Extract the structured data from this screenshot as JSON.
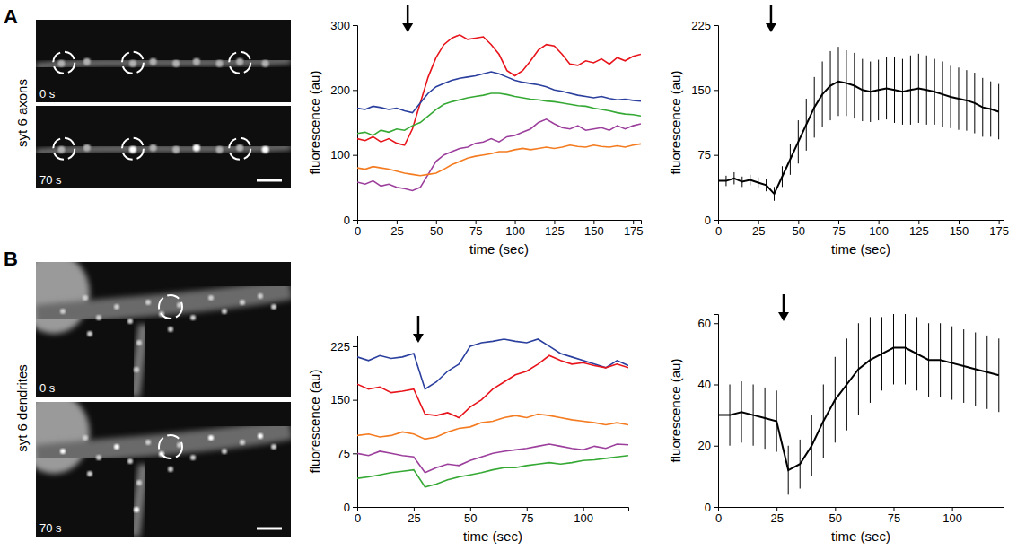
{
  "panels": [
    {
      "letter": "A",
      "label": "syt 6  axons",
      "image_times": [
        "0 s",
        "70 s"
      ]
    },
    {
      "letter": "B",
      "label": "syt 6  dendrites",
      "image_times": [
        "0 s",
        "70 s"
      ]
    }
  ],
  "chart_data": [
    {
      "type": "line",
      "x_label": "time (sec)",
      "y_label": "fluorescence (au)",
      "xlim": [
        0,
        180
      ],
      "xticks": [
        0,
        25,
        50,
        75,
        100,
        125,
        150,
        175
      ],
      "ylim": [
        0,
        300
      ],
      "yticks": [
        0,
        100,
        200,
        300
      ],
      "arrow": 32,
      "x": [
        0,
        5,
        10,
        15,
        20,
        25,
        30,
        35,
        40,
        45,
        50,
        55,
        60,
        65,
        70,
        75,
        80,
        85,
        90,
        95,
        100,
        105,
        110,
        115,
        120,
        125,
        130,
        135,
        140,
        145,
        150,
        155,
        160,
        165,
        170,
        175,
        180
      ],
      "series": [
        {
          "color": "#e8141b",
          "values": [
            125,
            122,
            128,
            120,
            125,
            118,
            115,
            140,
            180,
            220,
            250,
            270,
            280,
            285,
            278,
            280,
            282,
            270,
            255,
            230,
            222,
            230,
            245,
            262,
            270,
            268,
            255,
            240,
            238,
            245,
            242,
            248,
            240,
            250,
            245,
            252,
            255
          ]
        },
        {
          "color": "#2b3f9e",
          "values": [
            172,
            170,
            175,
            173,
            170,
            172,
            168,
            165,
            180,
            195,
            205,
            210,
            215,
            218,
            220,
            222,
            225,
            228,
            225,
            220,
            215,
            212,
            210,
            208,
            205,
            200,
            198,
            195,
            192,
            190,
            188,
            190,
            187,
            185,
            186,
            184,
            183
          ]
        },
        {
          "color": "#36a935",
          "values": [
            133,
            135,
            130,
            138,
            135,
            140,
            138,
            145,
            150,
            160,
            170,
            178,
            182,
            185,
            188,
            190,
            192,
            195,
            195,
            193,
            190,
            188,
            186,
            185,
            183,
            182,
            180,
            178,
            176,
            175,
            172,
            170,
            168,
            165,
            163,
            162,
            160
          ]
        },
        {
          "color": "#9c3f9c",
          "values": [
            58,
            55,
            60,
            52,
            55,
            50,
            48,
            45,
            50,
            70,
            90,
            100,
            105,
            110,
            112,
            118,
            120,
            125,
            120,
            128,
            130,
            135,
            140,
            150,
            155,
            148,
            142,
            140,
            145,
            138,
            140,
            142,
            138,
            145,
            140,
            145,
            148
          ]
        },
        {
          "color": "#f47b20",
          "values": [
            80,
            78,
            82,
            80,
            78,
            75,
            72,
            70,
            68,
            70,
            72,
            78,
            85,
            90,
            95,
            98,
            100,
            102,
            105,
            105,
            108,
            110,
            108,
            110,
            112,
            110,
            112,
            115,
            113,
            112,
            115,
            113,
            112,
            114,
            112,
            115,
            117
          ]
        }
      ]
    },
    {
      "type": "line",
      "x_label": "time (sec)",
      "y_label": "fluorescence (au)",
      "xlim": [
        0,
        178
      ],
      "xticks": [
        0,
        25,
        50,
        75,
        100,
        125,
        150,
        175
      ],
      "ylim": [
        0,
        225
      ],
      "yticks": [
        0,
        75,
        150,
        225
      ],
      "arrow": 33,
      "color": "#000000",
      "x": [
        0,
        5,
        10,
        15,
        20,
        25,
        30,
        35,
        40,
        45,
        50,
        55,
        60,
        65,
        70,
        75,
        80,
        85,
        90,
        95,
        100,
        105,
        110,
        115,
        120,
        125,
        130,
        135,
        140,
        145,
        150,
        155,
        160,
        165,
        170,
        175
      ],
      "values": [
        45,
        45,
        48,
        44,
        46,
        43,
        40,
        30,
        50,
        70,
        90,
        110,
        130,
        145,
        155,
        160,
        158,
        155,
        150,
        148,
        150,
        152,
        150,
        148,
        150,
        152,
        150,
        148,
        145,
        142,
        140,
        138,
        135,
        130,
        128,
        125
      ],
      "errors": [
        6,
        6,
        7,
        6,
        6,
        6,
        7,
        8,
        12,
        18,
        25,
        30,
        35,
        38,
        40,
        40,
        38,
        38,
        36,
        35,
        35,
        36,
        38,
        38,
        40,
        40,
        40,
        38,
        38,
        36,
        36,
        35,
        35,
        34,
        32,
        32
      ]
    },
    {
      "type": "line",
      "x_label": "time (sec)",
      "y_label": "fluorescence (au)",
      "xlim": [
        0,
        120
      ],
      "xticks": [
        0,
        25,
        50,
        75,
        100
      ],
      "ylim": [
        0,
        240
      ],
      "yticks": [
        0,
        75,
        150,
        225
      ],
      "arrow": 27,
      "x": [
        0,
        5,
        10,
        15,
        20,
        25,
        30,
        35,
        40,
        45,
        50,
        55,
        60,
        65,
        70,
        75,
        80,
        85,
        90,
        95,
        100,
        105,
        110,
        115,
        120
      ],
      "series": [
        {
          "color": "#2b3f9e",
          "values": [
            210,
            205,
            212,
            208,
            210,
            215,
            165,
            175,
            190,
            200,
            225,
            230,
            232,
            235,
            232,
            230,
            235,
            225,
            215,
            210,
            205,
            200,
            195,
            205,
            198
          ]
        },
        {
          "color": "#e8141b",
          "values": [
            172,
            165,
            168,
            160,
            162,
            165,
            130,
            128,
            132,
            125,
            140,
            150,
            165,
            175,
            185,
            190,
            200,
            212,
            205,
            200,
            202,
            198,
            195,
            200,
            195
          ]
        },
        {
          "color": "#f47b20",
          "values": [
            100,
            102,
            98,
            100,
            105,
            102,
            95,
            98,
            105,
            110,
            112,
            118,
            120,
            125,
            128,
            125,
            130,
            128,
            125,
            122,
            120,
            118,
            115,
            118,
            115
          ]
        },
        {
          "color": "#9c3f9c",
          "values": [
            75,
            72,
            78,
            75,
            72,
            70,
            48,
            55,
            60,
            58,
            65,
            70,
            75,
            78,
            80,
            82,
            85,
            88,
            85,
            82,
            80,
            85,
            82,
            88,
            87
          ]
        },
        {
          "color": "#36a935",
          "values": [
            40,
            42,
            45,
            48,
            50,
            52,
            28,
            32,
            38,
            42,
            45,
            48,
            52,
            55,
            55,
            58,
            60,
            62,
            60,
            62,
            65,
            66,
            68,
            70,
            72
          ]
        }
      ]
    },
    {
      "type": "line",
      "x_label": "time (sec)",
      "y_label": "fluorescence (au)",
      "xlim": [
        0,
        122
      ],
      "xticks": [
        0,
        25,
        50,
        75,
        100
      ],
      "ylim": [
        0,
        63
      ],
      "yticks": [
        0,
        20,
        40,
        60
      ],
      "arrow": 28,
      "color": "#000000",
      "x": [
        0,
        5,
        10,
        15,
        20,
        25,
        30,
        35,
        40,
        45,
        50,
        55,
        60,
        65,
        70,
        75,
        80,
        85,
        90,
        95,
        100,
        105,
        110,
        115,
        120
      ],
      "values": [
        30,
        30,
        31,
        30,
        29,
        28,
        12,
        14,
        20,
        28,
        35,
        40,
        45,
        48,
        50,
        52,
        52,
        50,
        48,
        48,
        47,
        46,
        45,
        44,
        43
      ],
      "errors": [
        10,
        10,
        10,
        10,
        10,
        10,
        8,
        8,
        10,
        12,
        14,
        15,
        15,
        14,
        12,
        12,
        12,
        12,
        12,
        12,
        12,
        12,
        12,
        12,
        12
      ]
    }
  ]
}
